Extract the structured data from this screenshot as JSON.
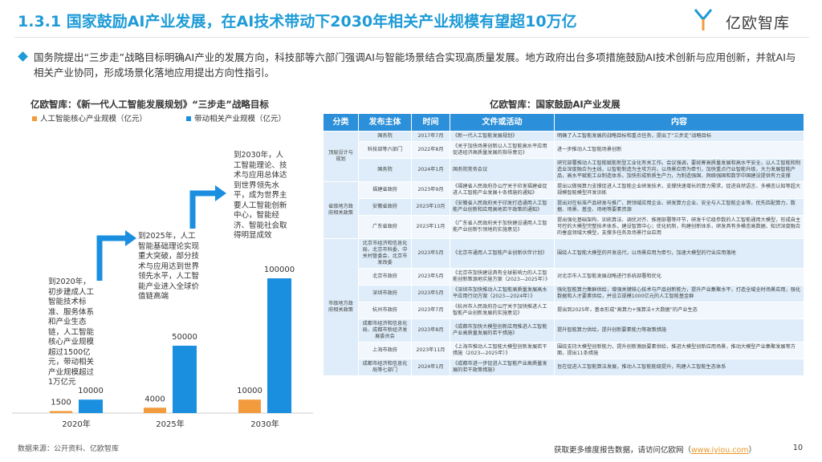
{
  "header": {
    "title": "1.3.1 国家鼓励AI产业发展，在AI技术带动下2030年相关产业规模有望超10万亿",
    "logo": "亿欧智库"
  },
  "intro": "国务院提出“三步走”战略目标明确AI产业的发展方向，科技部等六部门强调AI与智能场景结合实现高质量发展。地方政府出台多项措施鼓励AI技术创新与应用创新，并就AI与相关产业协同，形成场景化落地应用提出方向性指引。",
  "chart_data": {
    "type": "bar",
    "title": "亿欧智库：《新一代人工智能发展规划》“三步走”战略目标",
    "categories": [
      "2020年",
      "2025年",
      "2030年"
    ],
    "series": [
      {
        "name": "人工智能核心产业规模（亿元）",
        "color": "#f29b3d",
        "values": [
          1500,
          4000,
          10000
        ]
      },
      {
        "name": "带动相关产业规模（亿元）",
        "color": "#1a8fe0",
        "values": [
          10000,
          50000,
          100000
        ]
      }
    ],
    "annotations": [
      "到2020年，初步建成人工智能技术标准、服务体系和产业生态链，人工智能核心产业规模超过1500亿元，带动相关产业规模超过1万亿元",
      "到2025年，人工智能基础理论实现重大突破，部分技术与应用达到世界领先水平，人工智能产业进入全球价值链高端",
      "到2030年，人工智能理论、技术与应用总体达到世界领先水平，成为世界主要人工智能创新中心，智能经济、智能社会取得明显成效"
    ]
  },
  "table": {
    "title": "亿欧智库：国家鼓励AI产业发展",
    "columns": [
      "分类",
      "发布主体",
      "时间",
      "文件或活动",
      "内容"
    ],
    "groups": [
      {
        "category": "顶层设计与规划",
        "rows": [
          [
            "国务院",
            "2017年7月",
            "《新一代人工智能发展规划》",
            "明确了人工智能发展的战略目标和重点任务，提出了“三步走”战略目标"
          ],
          [
            "科技部等六部门",
            "2022年8月",
            "《关于加快场景创新以人工智能高水平应用促进经济高质量发展的指导意见》",
            "进一步推动人工智能场景创新"
          ],
          [
            "国务院",
            "2024年1月",
            "国务院常务会议",
            "研究部署推动人工智能赋能新型工业化有关工作。会议强调，要统筹高质量发展和高水平安全，以人工智能和制造业深度融合为主线，以智能制造为主攻方向，以场景应用为牵引，加快重点行业智能升级，大力发展智能产品，高水平赋能工业制造体系，加快形成新质生产力，为制造强国、网络强国和数字中国建设提供有力支撑"
          ]
        ]
      },
      {
        "category": "省级地方政府相关政策",
        "rows": [
          [
            "福建省政府",
            "2023年9月",
            "《福建省人民政府办公厅关于印发福建省促进人工智能产业发展十条措施的通知》",
            "提出以做强算力支撑促进人工智能企业研发技术，支撑快速增长的算力需求，促进自然语言、多模态认知等超大规模智能模型开发训练"
          ],
          [
            "安徽省政府",
            "2023年10月",
            "《安徽省人民政府关于印发打造通用人工智能产业创新和应用高地若干政策的通知》",
            "提出对在标准产品研发与推广、跨领域应用企业、研发算力企业、安全与人工智能企业等，优先匹配算力、数据、场景、基金、场地等要素资源"
          ],
          [
            "广东省政府",
            "2023年11月",
            "《广东省人民政府关于加快建设通用人工智能产业创新引领地的实施意见》",
            "提出强化基础架构、训练算法、调优对齐、推理部署等环节，研发千亿级参数的人工智能通用大模型，形成自主可控的大模型完整技术体系，建设智算中心；优化机制，构建创新体系，研发具有多模态高数据、知识深度融合的垂直领域大模型，支撑多任务及场景行业应用"
          ]
        ]
      },
      {
        "category": "市级地方政府相关政策",
        "rows": [
          [
            "北京市经济和信息化局、北京市科委、中关村管委会、北京市发改委",
            "2023年5月",
            "《北京市通用人工智能产业创新伙伴计划》",
            "围绕人工智能大模型的开发迭代，以场景应用为牵引，加速大模型的行业应用落地"
          ],
          [
            "北京市政府",
            "2023年5月",
            "《北京市加快建设具有全球影响力的人工智能创新策源地实施方案（2023—2025年）》",
            "对北京市人工智能发展战略进行系统部署和优化"
          ],
          [
            "深圳市政府",
            "2023年5月",
            "《深圳市加快推动人工智能高质量发展高水平应用行动方案（2023—2024年）》",
            "强化智能算力集群供给，增强关键核心技术与产品创新能力，提升产业集聚水平，打造全域全时场景应用，强化数据和人才要素供给，并设立规模1000亿元的人工智能基金群"
          ],
          [
            "杭州市政府",
            "2023年7月",
            "《杭州市人民政府办公厅关于加快推进人工智能产业创新发展的实施意见》",
            "提出到2025年，基本形成“高算力+强算法+大数据”的产业生态"
          ],
          [
            "成都市经济和信息化局、成都市新经济发展委员会",
            "2023年8月",
            "《成都市加快大模型创新应用推进人工智能产业高质量发展的若干措施》",
            "提升智能算力供给，提升创新要素能力等政策措施"
          ],
          [
            "上海市政府",
            "2023年11月",
            "《上海市推动人工智能大模型创新发展若干措施（2023—2025年）》",
            "围绕支持大模型创新能力，提升创新激励要素供给，推进大模型创新应用场景，推动大模型产业集聚发展等方面，提出11条措施"
          ],
          [
            "成都市经济和信息化局等七部门",
            "2024年1月",
            "《成都市进一步促进人工智能产业高质量发展的若干政策措施》",
            "旨在促进人工智能算法发展，推动人工智能能级提升，构建人工智能生态体系"
          ]
        ]
      }
    ]
  },
  "footer": {
    "source": "数据来源：公开资料、亿欧智库",
    "note": "获取更多维度报告数据，请访问亿欧网（",
    "link": "www.iyiou.com",
    "note_end": "）",
    "page": "10"
  }
}
